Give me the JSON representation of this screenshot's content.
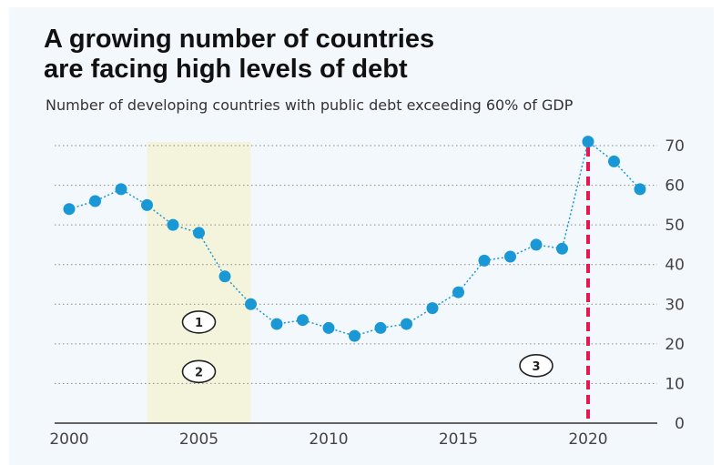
{
  "header": {
    "title_line1": "A growing number of countries",
    "title_line2": "are facing high levels of debt",
    "subtitle": "Number of developing countries with public debt exceeding 60% of GDP"
  },
  "colors": {
    "line": "#1a98d5",
    "marker": "#1a98d5",
    "highlight_band": "#f4f4dc",
    "reference_line": "#e8174f",
    "grid": "#8a8a8a",
    "background": "#f3f8fc"
  },
  "chart_data": {
    "type": "line",
    "title": "A growing number of countries are facing high levels of debt",
    "subtitle": "Number of developing countries with public debt exceeding 60% of GDP",
    "xlabel": "",
    "ylabel": "",
    "x": [
      2000,
      2001,
      2002,
      2003,
      2004,
      2005,
      2006,
      2007,
      2008,
      2009,
      2010,
      2011,
      2012,
      2013,
      2014,
      2015,
      2016,
      2017,
      2018,
      2019,
      2020,
      2021,
      2022
    ],
    "series": [
      {
        "values": [
          54,
          56,
          59,
          55,
          50,
          48,
          37,
          30,
          25,
          26,
          24,
          22,
          24,
          25,
          29,
          33,
          41,
          42,
          45,
          44,
          71,
          66,
          59
        ]
      }
    ],
    "x_ticks": [
      "2000",
      "2005",
      "2010",
      "2015",
      "2020"
    ],
    "y_ticks": [
      "0",
      "10",
      "20",
      "30",
      "40",
      "50",
      "60",
      "70"
    ],
    "xlim": [
      2000,
      2022
    ],
    "ylim": [
      0,
      70
    ],
    "y_axis_side": "right",
    "grid": "horizontal dotted",
    "highlight_band": {
      "x_start": 2003,
      "x_end": 2007
    },
    "reference_line": {
      "x": 2020,
      "style": "dashed"
    },
    "annotations": [
      {
        "label": "1",
        "x": 2005,
        "y": 25.5
      },
      {
        "label": "2",
        "x": 2005,
        "y": 13
      },
      {
        "label": "3",
        "x": 2018,
        "y": 14.5
      }
    ]
  }
}
